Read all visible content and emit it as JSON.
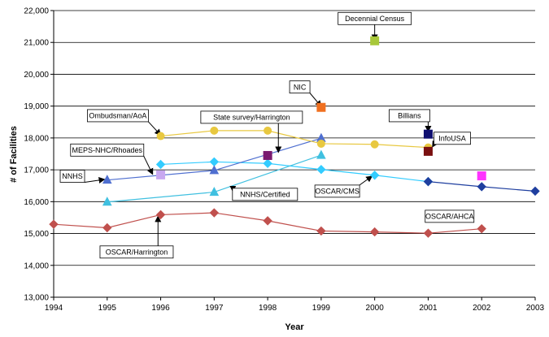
{
  "chart_data": {
    "type": "line",
    "title": "",
    "xlabel": "Year",
    "ylabel": "# of Facilities",
    "xlim": [
      1994,
      2003
    ],
    "ylim": [
      13000,
      22000
    ],
    "x_ticks": [
      "1994",
      "1995",
      "1996",
      "1997",
      "1998",
      "1999",
      "2000",
      "2001",
      "2002",
      "2003"
    ],
    "y_ticks": [
      "13,000",
      "14,000",
      "15,000",
      "16,000",
      "17,000",
      "18,000",
      "19,000",
      "20,000",
      "21,000",
      "22,000"
    ],
    "grid": "horizontal",
    "series": [
      {
        "name": "OSCAR/Harrington",
        "color": "#c0504d",
        "marker": "diamond",
        "line": true,
        "x": [
          1994,
          1995,
          1996,
          1997,
          1998,
          1999,
          2000,
          2001,
          2002
        ],
        "y": [
          15290,
          15180,
          15590,
          15650,
          15400,
          15080,
          15050,
          15010,
          15150
        ]
      },
      {
        "name": "OSCAR/CMS",
        "color": "#33ccff",
        "marker": "diamond",
        "line": true,
        "x": [
          1996,
          1997,
          1998,
          1999,
          2000,
          2001
        ],
        "y": [
          17170,
          17250,
          17200,
          17010,
          16830,
          16630
        ]
      },
      {
        "name": "OSCAR/AHCA",
        "color": "#1f3f9f",
        "marker": "diamond",
        "line": true,
        "x": [
          2001,
          2002,
          2003
        ],
        "y": [
          16630,
          16470,
          16330
        ]
      },
      {
        "name": "NNHS",
        "color": "#4f6fd0",
        "marker": "triangle",
        "line": true,
        "x": [
          1995,
          1997,
          1999
        ],
        "y": [
          16680,
          16980,
          17990
        ]
      },
      {
        "name": "NNHS/Certified",
        "color": "#40c0e0",
        "marker": "triangle",
        "line": true,
        "x": [
          1995,
          1997,
          1999
        ],
        "y": [
          15990,
          16300,
          17460
        ]
      },
      {
        "name": "Ombudsman/AoA",
        "color": "#e8c840",
        "marker": "circle",
        "line": true,
        "x": [
          1996,
          1997,
          1998,
          1999,
          2000,
          2001
        ],
        "y": [
          18060,
          18230,
          18230,
          17820,
          17800,
          17700
        ]
      },
      {
        "name": "MEPS-NHC/Rhoades",
        "color": "#c8a8f0",
        "marker": "square",
        "line": false,
        "x": [
          1996
        ],
        "y": [
          16840
        ]
      },
      {
        "name": "State survey/Harrington",
        "color": "#7a1a70",
        "marker": "square",
        "line": false,
        "x": [
          1998
        ],
        "y": [
          17450
        ]
      },
      {
        "name": "NIC",
        "color": "#f07020",
        "marker": "square",
        "line": false,
        "x": [
          1999
        ],
        "y": [
          18960
        ]
      },
      {
        "name": "Decennial Census",
        "color": "#a8c83a",
        "marker": "square",
        "line": false,
        "x": [
          2000
        ],
        "y": [
          21050
        ]
      },
      {
        "name": "Billians",
        "color": "#101070",
        "marker": "square",
        "line": false,
        "x": [
          2001
        ],
        "y": [
          18120
        ]
      },
      {
        "name": "InfoUSA",
        "color": "#7a1010",
        "marker": "square",
        "line": false,
        "x": [
          2001
        ],
        "y": [
          17580
        ]
      },
      {
        "name": "Unlabeled 2002 point",
        "color": "#ff33ff",
        "marker": "square",
        "line": false,
        "x": [
          2002
        ],
        "y": [
          16810
        ]
      }
    ],
    "annotations": [
      {
        "text": "Decennial Census",
        "box": [
          2000,
          21750
        ],
        "arrow_to": [
          2000,
          21070
        ]
      },
      {
        "text": "NIC",
        "box": [
          1998.6,
          19600
        ],
        "arrow_to": [
          1999,
          18990
        ]
      },
      {
        "text": "Ombudsman/AoA",
        "box": [
          1995.2,
          18700
        ],
        "arrow_to": [
          1996,
          18090
        ]
      },
      {
        "text": "State survey/Harrington",
        "box": [
          1997.7,
          18650
        ],
        "arrow_to": [
          1998.2,
          17550
        ]
      },
      {
        "text": "Billians",
        "box": [
          2000.65,
          18700
        ],
        "arrow_to": [
          2001,
          18200
        ]
      },
      {
        "text": "InfoUSA",
        "box": [
          2001.45,
          17990
        ],
        "arrow_to": [
          2001.08,
          17720
        ]
      },
      {
        "text": "MEPS-NHC/Rhoades",
        "box": [
          1995,
          17620
        ],
        "arrow_to": [
          1995.85,
          16860
        ]
      },
      {
        "text": "NNHS",
        "box": [
          1994.35,
          16800
        ],
        "arrow_to": [
          1994.95,
          16700
        ]
      },
      {
        "text": "NNHS/Certified",
        "box": [
          1997.95,
          16230
        ],
        "arrow_to": [
          1997.35,
          16320
        ]
      },
      {
        "text": "OSCAR/CMS",
        "box": [
          1999.3,
          16330
        ],
        "arrow_to": [
          1999.95,
          16800
        ]
      },
      {
        "text": "OSCAR/AHCA",
        "box": [
          2001.4,
          15540
        ],
        "arrow_to": null
      },
      {
        "text": "OSCAR/Harrington",
        "box": [
          1995.55,
          14420
        ],
        "arrow_to": [
          1995.95,
          15540
        ]
      }
    ]
  }
}
